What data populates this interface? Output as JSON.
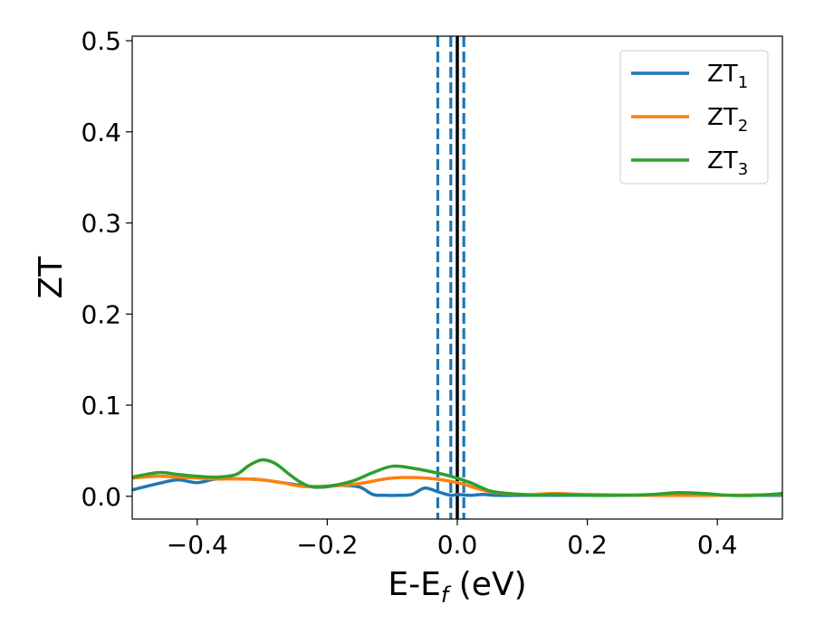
{
  "chart_data": {
    "type": "line",
    "xlabel": "E-E",
    "xlabel_sub": "f",
    "xlabel_suffix": " (eV)",
    "ylabel": "ZT",
    "xlim": [
      -0.5,
      0.5
    ],
    "ylim": [
      -0.025,
      0.505
    ],
    "xticks": [
      -0.4,
      -0.2,
      0.0,
      0.2,
      0.4
    ],
    "xtick_labels": [
      "−0.4",
      "−0.2",
      "0.0",
      "0.2",
      "0.4"
    ],
    "yticks": [
      0.0,
      0.1,
      0.2,
      0.3,
      0.4,
      0.5
    ],
    "ytick_labels": [
      "0.0",
      "0.1",
      "0.2",
      "0.3",
      "0.4",
      "0.5"
    ],
    "grid": false,
    "legend_position": "top-right",
    "vertical_lines": [
      {
        "x": -0.03,
        "style": "dashed",
        "color": "#1f77b4"
      },
      {
        "x": -0.01,
        "style": "dashed",
        "color": "#1f77b4"
      },
      {
        "x": 0.0,
        "style": "solid",
        "color": "#000000"
      },
      {
        "x": 0.01,
        "style": "dashed",
        "color": "#1f77b4"
      }
    ],
    "series": [
      {
        "name": "ZT",
        "name_sub": "1",
        "color": "#1f77b4",
        "x": [
          -0.5,
          -0.46,
          -0.43,
          -0.4,
          -0.37,
          -0.33,
          -0.3,
          -0.27,
          -0.24,
          -0.21,
          -0.18,
          -0.15,
          -0.13,
          -0.11,
          -0.09,
          -0.07,
          -0.05,
          -0.03,
          -0.01,
          0.0,
          0.02,
          0.04,
          0.06,
          0.1,
          0.15,
          0.2,
          0.3,
          0.4,
          0.5
        ],
        "y": [
          0.007,
          0.014,
          0.018,
          0.015,
          0.019,
          0.019,
          0.018,
          0.015,
          0.012,
          0.01,
          0.012,
          0.01,
          0.002,
          0.001,
          0.001,
          0.002,
          0.009,
          0.005,
          0.001,
          0.002,
          0.001,
          0.002,
          0.001,
          0.001,
          0.001,
          0.001,
          0.001,
          0.001,
          0.001
        ]
      },
      {
        "name": "ZT",
        "name_sub": "2",
        "color": "#ff7f0e",
        "x": [
          -0.5,
          -0.46,
          -0.43,
          -0.4,
          -0.37,
          -0.33,
          -0.3,
          -0.27,
          -0.24,
          -0.21,
          -0.18,
          -0.15,
          -0.1,
          -0.05,
          0.0,
          0.05,
          0.1,
          0.15,
          0.2,
          0.3,
          0.4,
          0.5
        ],
        "y": [
          0.02,
          0.022,
          0.021,
          0.02,
          0.019,
          0.019,
          0.018,
          0.015,
          0.011,
          0.011,
          0.012,
          0.014,
          0.02,
          0.02,
          0.015,
          0.005,
          0.002,
          0.003,
          0.002,
          0.001,
          0.001,
          0.002
        ]
      },
      {
        "name": "ZT",
        "name_sub": "3",
        "color": "#2ca02c",
        "x": [
          -0.5,
          -0.46,
          -0.43,
          -0.4,
          -0.37,
          -0.34,
          -0.32,
          -0.3,
          -0.28,
          -0.26,
          -0.24,
          -0.22,
          -0.19,
          -0.16,
          -0.13,
          -0.1,
          -0.07,
          -0.04,
          -0.01,
          0.02,
          0.05,
          0.08,
          0.1,
          0.12,
          0.15,
          0.2,
          0.25,
          0.3,
          0.34,
          0.38,
          0.42,
          0.46,
          0.5
        ],
        "y": [
          0.021,
          0.026,
          0.024,
          0.022,
          0.021,
          0.024,
          0.034,
          0.04,
          0.036,
          0.025,
          0.015,
          0.01,
          0.012,
          0.017,
          0.026,
          0.033,
          0.031,
          0.027,
          0.022,
          0.015,
          0.006,
          0.003,
          0.002,
          0.001,
          0.002,
          0.001,
          0.001,
          0.002,
          0.004,
          0.003,
          0.001,
          0.001,
          0.003
        ]
      }
    ]
  }
}
